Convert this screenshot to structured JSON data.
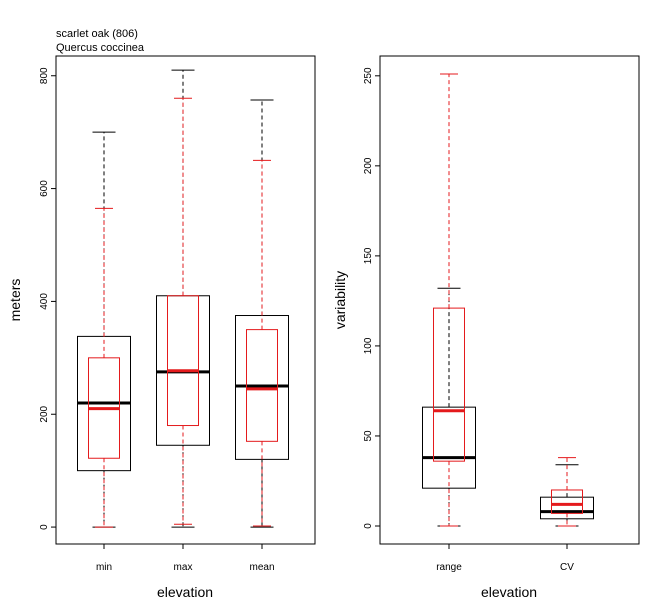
{
  "header": {
    "title": "scarlet oak (806)",
    "subtitle": "Quercus coccinea"
  },
  "colors": {
    "series_a": "#000000",
    "series_b": "#e41a1c",
    "background": "#ffffff"
  },
  "chart_data": [
    {
      "type": "box",
      "title": "scarlet oak (806)",
      "subtitle": "Quercus coccinea",
      "xlabel": "elevation",
      "ylabel": "meters",
      "ylim": [
        -30,
        835
      ],
      "yticks": [
        0,
        200,
        400,
        600,
        800
      ],
      "categories": [
        "min",
        "max",
        "mean"
      ],
      "grid": false,
      "legend": "none",
      "series": [
        {
          "color": "#000000",
          "boxes": [
            {
              "whisker_low": 0,
              "q1": 100,
              "median": 220,
              "q3": 338,
              "whisker_high": 700
            },
            {
              "whisker_low": 0,
              "q1": 145,
              "median": 275,
              "q3": 410,
              "whisker_high": 810
            },
            {
              "whisker_low": 0,
              "q1": 120,
              "median": 250,
              "q3": 375,
              "whisker_high": 757
            }
          ]
        },
        {
          "color": "#e41a1c",
          "boxes": [
            {
              "whisker_low": 0,
              "q1": 122,
              "median": 210,
              "q3": 300,
              "whisker_high": 565
            },
            {
              "whisker_low": 5,
              "q1": 180,
              "median": 277,
              "q3": 410,
              "whisker_high": 760
            },
            {
              "whisker_low": 2,
              "q1": 152,
              "median": 245,
              "q3": 350,
              "whisker_high": 650
            }
          ]
        }
      ]
    },
    {
      "type": "box",
      "xlabel": "elevation",
      "ylabel": "variability",
      "ylim": [
        -10,
        261
      ],
      "yticks": [
        0,
        50,
        100,
        150,
        200,
        250
      ],
      "categories": [
        "range",
        "CV"
      ],
      "grid": false,
      "legend": "none",
      "series": [
        {
          "color": "#000000",
          "boxes": [
            {
              "whisker_low": 0,
              "q1": 21,
              "median": 38,
              "q3": 66,
              "whisker_high": 132
            },
            {
              "whisker_low": 0,
              "q1": 4,
              "median": 8,
              "q3": 16,
              "whisker_high": 34
            }
          ]
        },
        {
          "color": "#e41a1c",
          "boxes": [
            {
              "whisker_low": 0,
              "q1": 36,
              "median": 64,
              "q3": 121,
              "whisker_high": 251
            },
            {
              "whisker_low": 0,
              "q1": 7,
              "median": 12,
              "q3": 20,
              "whisker_high": 38
            }
          ]
        }
      ]
    }
  ]
}
